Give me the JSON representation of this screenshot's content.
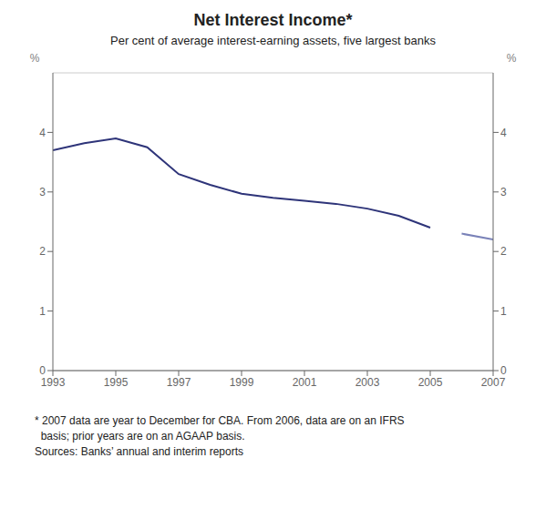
{
  "chart_data": {
    "type": "line",
    "title": "Net Interest Income*",
    "subtitle": "Per cent of average interest-earning assets, five largest banks",
    "annotations": [
      "* 2007 data are year to December for CBA. From 2006, data are on an IFRS",
      "  basis; prior years are on an AGAAP basis.",
      "Sources: Banks’ annual and interim reports"
    ],
    "y_label": "%",
    "y2_label": "%",
    "xlim": [
      1993,
      2007
    ],
    "xticks": [
      1993,
      1995,
      1997,
      1999,
      2001,
      2003,
      2005,
      2007
    ],
    "ylim": [
      0,
      5
    ],
    "yticks": [
      0,
      1,
      2,
      3,
      4
    ],
    "y2lim": [
      0,
      5
    ],
    "y2ticks": [
      0,
      1,
      2,
      3,
      4
    ],
    "grid": "y",
    "series": [
      {
        "color": "#2e3479",
        "x": [
          1993,
          1994,
          1995,
          1996,
          1997,
          1998,
          1999,
          2000,
          2001,
          2002,
          2003,
          2004,
          2005
        ],
        "values": [
          3.7,
          3.82,
          3.9,
          3.75,
          3.3,
          3.12,
          2.97,
          2.9,
          2.85,
          2.8,
          2.72,
          2.6,
          2.4
        ]
      },
      {
        "color": "#7a82b8",
        "x": [
          2006,
          2007
        ],
        "values": [
          2.3,
          2.2
        ]
      }
    ]
  }
}
